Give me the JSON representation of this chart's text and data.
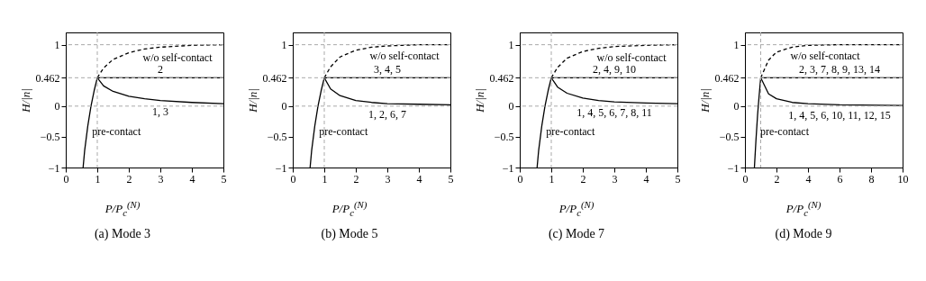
{
  "chart_data": [
    {
      "type": "line",
      "title": "(a) Mode 3",
      "xlabel": "P/P$_{c}$$^{(N)}$",
      "ylabel": "H/|n|",
      "xlim": [
        0,
        5
      ],
      "xticks": [
        0,
        1,
        2,
        3,
        4,
        5
      ],
      "ylim": [
        -1,
        1.2
      ],
      "yticks": [
        -1,
        -0.5,
        0,
        0.462,
        1
      ],
      "grid": false,
      "legend": false,
      "series": [
        {
          "color": "#000000",
          "line_style": "solid",
          "x": [
            0.55,
            0.6,
            0.7,
            0.8,
            0.9,
            1
          ],
          "values": [
            -1,
            -0.72,
            -0.32,
            0,
            0.25,
            0.462
          ]
        },
        {
          "color": "#000000",
          "line_style": "dashed",
          "x": [
            1,
            1.2,
            1.5,
            2,
            2.5,
            3,
            4,
            5
          ],
          "values": [
            0.462,
            0.62,
            0.76,
            0.87,
            0.93,
            0.96,
            0.99,
            1
          ]
        },
        {
          "color": "#000000",
          "line_style": "solid",
          "x": [
            1,
            5
          ],
          "values": [
            0.462,
            0.462
          ]
        },
        {
          "color": "#000000",
          "line_style": "solid",
          "x": [
            1,
            1.2,
            1.5,
            2,
            2.5,
            3,
            4,
            5
          ],
          "values": [
            0.462,
            0.33,
            0.24,
            0.16,
            0.12,
            0.09,
            0.06,
            0.04
          ]
        }
      ],
      "ref_lines": [
        {
          "axis": "y",
          "value": 1,
          "color": "#aaaaaa",
          "line_style": "dashed"
        },
        {
          "axis": "y",
          "value": 0.462,
          "color": "#aaaaaa",
          "line_style": "dashed"
        },
        {
          "axis": "y",
          "value": 0,
          "color": "#aaaaaa",
          "line_style": "dashed"
        },
        {
          "axis": "x",
          "value": 1,
          "color": "#aaaaaa",
          "line_style": "dashed"
        }
      ],
      "annotations": [
        {
          "text": "w/o self-contact",
          "x": 2.5,
          "y": 0.93
        },
        {
          "text": "2",
          "x": 3,
          "y": 0.462
        },
        {
          "text": "1, 3",
          "x": 3,
          "y": 0.09
        },
        {
          "text": "pre-contact",
          "x": 0.75,
          "y": -0.15
        }
      ]
    },
    {
      "type": "line",
      "title": "(b) Mode 5",
      "xlabel": "P/P$_{c}$$^{(N)}$",
      "ylabel": "H/|n|",
      "xlim": [
        0,
        5
      ],
      "xticks": [
        0,
        1,
        2,
        3,
        4,
        5
      ],
      "ylim": [
        -1,
        1.2
      ],
      "yticks": [
        -1,
        -0.5,
        0,
        0.462,
        1
      ],
      "grid": false,
      "legend": false,
      "series": [
        {
          "color": "#000000",
          "line_style": "solid",
          "x": [
            0.55,
            0.6,
            0.7,
            0.8,
            0.9,
            1
          ],
          "values": [
            -1,
            -0.72,
            -0.32,
            0,
            0.25,
            0.462
          ]
        },
        {
          "color": "#000000",
          "line_style": "dashed",
          "x": [
            1,
            1.2,
            1.5,
            2,
            2.5,
            3,
            4,
            5
          ],
          "values": [
            0.462,
            0.64,
            0.8,
            0.91,
            0.96,
            0.98,
            1,
            1
          ]
        },
        {
          "color": "#000000",
          "line_style": "solid",
          "x": [
            1,
            5
          ],
          "values": [
            0.462,
            0.462
          ]
        },
        {
          "color": "#000000",
          "line_style": "solid",
          "x": [
            1,
            1.2,
            1.5,
            2,
            2.5,
            3,
            4,
            5
          ],
          "values": [
            0.462,
            0.28,
            0.17,
            0.09,
            0.06,
            0.04,
            0.03,
            0.02
          ]
        }
      ],
      "ref_lines": [
        {
          "axis": "y",
          "value": 1,
          "color": "#aaaaaa",
          "line_style": "dashed"
        },
        {
          "axis": "y",
          "value": 0.462,
          "color": "#aaaaaa",
          "line_style": "dashed"
        },
        {
          "axis": "y",
          "value": 0,
          "color": "#aaaaaa",
          "line_style": "dashed"
        },
        {
          "axis": "x",
          "value": 1,
          "color": "#aaaaaa",
          "line_style": "dashed"
        }
      ],
      "annotations": [
        {
          "text": "w/o self-contact",
          "x": 2.5,
          "y": 0.96
        },
        {
          "text": "3, 4, 5",
          "x": 3,
          "y": 0.462
        },
        {
          "text": "1, 2, 6, 7",
          "x": 3,
          "y": 0.04
        },
        {
          "text": "pre-contact",
          "x": 0.75,
          "y": -0.15
        }
      ]
    },
    {
      "type": "line",
      "title": "(c) Mode 7",
      "xlabel": "P/P$_{c}$$^{(N)}$",
      "ylabel": "H/|n|",
      "xlim": [
        0,
        5
      ],
      "xticks": [
        0,
        1,
        2,
        3,
        4,
        5
      ],
      "ylim": [
        -1,
        1.2
      ],
      "yticks": [
        -1,
        -0.5,
        0,
        0.462,
        1
      ],
      "grid": false,
      "legend": false,
      "series": [
        {
          "color": "#000000",
          "line_style": "solid",
          "x": [
            0.55,
            0.6,
            0.7,
            0.8,
            0.9,
            1
          ],
          "values": [
            -1,
            -0.72,
            -0.32,
            0,
            0.25,
            0.462
          ]
        },
        {
          "color": "#000000",
          "line_style": "dashed",
          "x": [
            1,
            1.2,
            1.5,
            2,
            2.5,
            3,
            4,
            5
          ],
          "values": [
            0.462,
            0.63,
            0.78,
            0.89,
            0.94,
            0.97,
            0.99,
            1
          ]
        },
        {
          "color": "#000000",
          "line_style": "solid",
          "x": [
            1,
            5
          ],
          "values": [
            0.462,
            0.462
          ]
        },
        {
          "color": "#000000",
          "line_style": "solid",
          "x": [
            1,
            1.2,
            1.5,
            2,
            2.5,
            3,
            4,
            5
          ],
          "values": [
            0.462,
            0.31,
            0.21,
            0.13,
            0.09,
            0.07,
            0.05,
            0.04
          ]
        }
      ],
      "ref_lines": [
        {
          "axis": "y",
          "value": 1,
          "color": "#aaaaaa",
          "line_style": "dashed"
        },
        {
          "axis": "y",
          "value": 0.462,
          "color": "#aaaaaa",
          "line_style": "dashed"
        },
        {
          "axis": "y",
          "value": 0,
          "color": "#aaaaaa",
          "line_style": "dashed"
        },
        {
          "axis": "x",
          "value": 1,
          "color": "#aaaaaa",
          "line_style": "dashed"
        }
      ],
      "annotations": [
        {
          "text": "w/o self-contact",
          "x": 2.5,
          "y": 0.94
        },
        {
          "text": "2, 4, 9, 10",
          "x": 3,
          "y": 0.462
        },
        {
          "text": "1, 4, 5, 6, 7, 8, 11",
          "x": 3,
          "y": 0.07
        },
        {
          "text": "pre-contact",
          "x": 0.75,
          "y": -0.15
        }
      ]
    },
    {
      "type": "line",
      "title": "(d) Mode 9",
      "xlabel": "P/P$_{c}$$^{(N)}$",
      "ylabel": "H/|n|",
      "xlim": [
        0,
        10
      ],
      "xticks": [
        0,
        2,
        4,
        6,
        8,
        10
      ],
      "ylim": [
        -1,
        1.2
      ],
      "yticks": [
        -1,
        -0.5,
        0,
        0.462,
        1
      ],
      "grid": false,
      "legend": false,
      "series": [
        {
          "color": "#000000",
          "line_style": "solid",
          "x": [
            0.6,
            0.7,
            0.8,
            0.9,
            1
          ],
          "values": [
            -1,
            -0.55,
            -0.15,
            0.17,
            0.462
          ]
        },
        {
          "color": "#000000",
          "line_style": "dashed",
          "x": [
            1,
            1.5,
            2,
            3,
            4,
            6,
            10
          ],
          "values": [
            0.462,
            0.75,
            0.88,
            0.96,
            0.99,
            1,
            1
          ]
        },
        {
          "color": "#000000",
          "line_style": "solid",
          "x": [
            1,
            10
          ],
          "values": [
            0.462,
            0.462
          ]
        },
        {
          "color": "#000000",
          "line_style": "solid",
          "x": [
            1,
            1.5,
            2,
            3,
            4,
            6,
            10
          ],
          "values": [
            0.462,
            0.2,
            0.12,
            0.06,
            0.04,
            0.02,
            0.01
          ]
        }
      ],
      "ref_lines": [
        {
          "axis": "y",
          "value": 1,
          "color": "#aaaaaa",
          "line_style": "dashed"
        },
        {
          "axis": "y",
          "value": 0.462,
          "color": "#aaaaaa",
          "line_style": "dashed"
        },
        {
          "axis": "y",
          "value": 0,
          "color": "#aaaaaa",
          "line_style": "dashed"
        },
        {
          "axis": "x",
          "value": 1,
          "color": "#aaaaaa",
          "line_style": "dashed"
        }
      ],
      "annotations": [
        {
          "text": "w/o self-contact",
          "x": 3,
          "y": 0.96
        },
        {
          "text": "2, 3, 7, 8, 9, 13, 14",
          "x": 6,
          "y": 0.462
        },
        {
          "text": "1, 4, 5, 6, 10, 11, 12, 15",
          "x": 6,
          "y": 0.02
        },
        {
          "text": "pre-contact",
          "x": 0.8,
          "y": -0.15
        }
      ]
    }
  ]
}
